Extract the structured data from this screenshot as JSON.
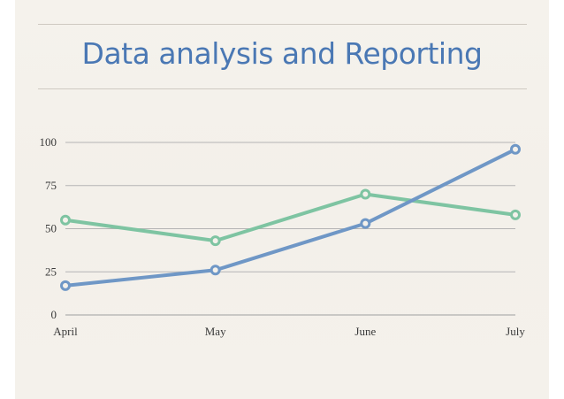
{
  "title": "Data analysis and Reporting",
  "chart_data": {
    "type": "line",
    "categories": [
      "April",
      "May",
      "June",
      "July"
    ],
    "series": [
      {
        "values": [
          55,
          43,
          70,
          58
        ],
        "color": "#7ec4a2"
      },
      {
        "values": [
          17,
          26,
          53,
          96
        ],
        "color": "#6f97c6"
      }
    ],
    "ylim": [
      0,
      100
    ],
    "yticks": [
      0,
      25,
      50,
      75,
      100
    ],
    "ytick_labels": [
      "0",
      "25",
      "50",
      "75",
      "100"
    ],
    "grid": true,
    "legend": "none"
  }
}
